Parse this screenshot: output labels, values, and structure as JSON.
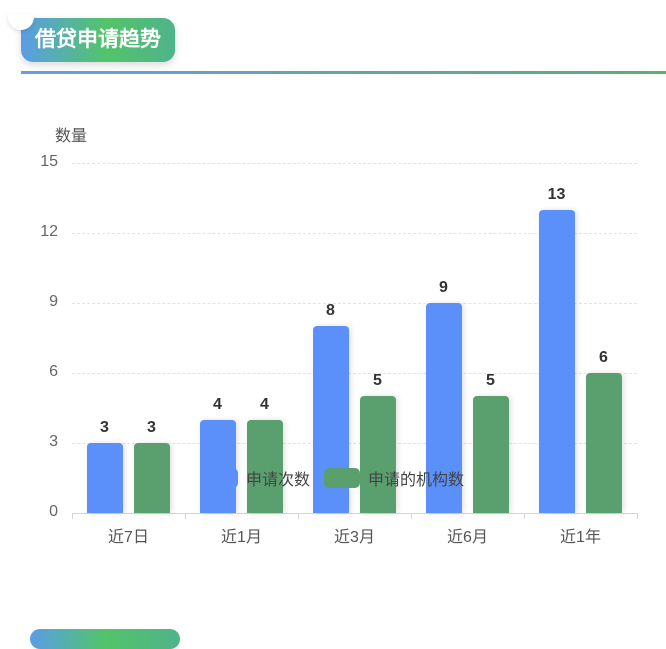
{
  "header": {
    "title": "借贷申请趋势"
  },
  "colors": {
    "series1": "#5b8ff9",
    "series2": "#5aa06f",
    "accent_start": "#5a9de6",
    "accent_end": "#52c46a"
  },
  "chart_data": {
    "type": "bar",
    "title": "借贷申请趋势",
    "xlabel": "",
    "ylabel": "数量",
    "ylim": [
      0,
      15
    ],
    "yticks": [
      0,
      3,
      6,
      9,
      12,
      15
    ],
    "grid": true,
    "legend_position": "bottom",
    "categories": [
      "近7日",
      "近1月",
      "近3月",
      "近6月",
      "近1年"
    ],
    "series": [
      {
        "name": "申请次数",
        "color": "#5b8ff9",
        "values": [
          3,
          4,
          8,
          9,
          13
        ]
      },
      {
        "name": "申请的机构数",
        "color": "#5aa06f",
        "values": [
          3,
          4,
          5,
          5,
          6
        ]
      }
    ]
  }
}
